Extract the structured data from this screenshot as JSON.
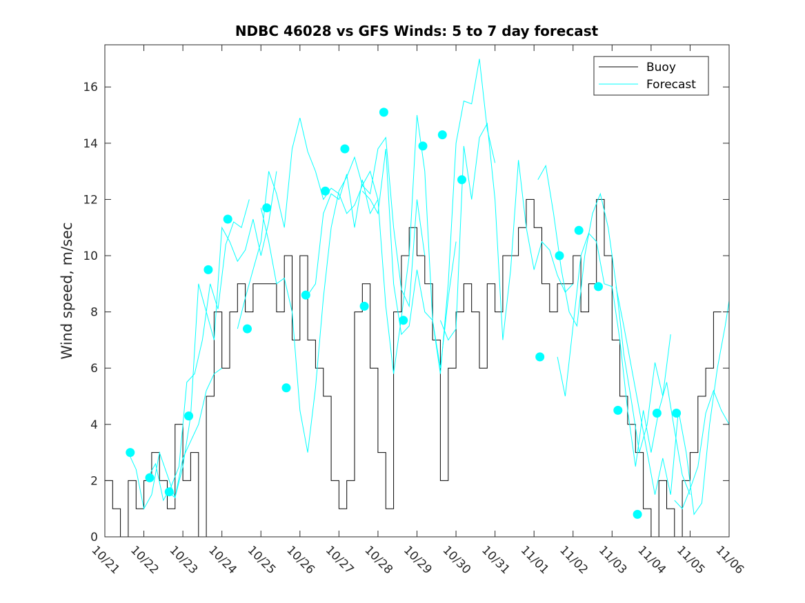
{
  "chart_data": {
    "type": "line",
    "title": "NDBC 46028 vs GFS Winds: 5 to 7 day forecast",
    "xlabel": "",
    "ylabel": "Wind speed, m/sec",
    "xlim": [
      0,
      16
    ],
    "ylim": [
      0,
      17.5
    ],
    "yticks": [
      0,
      2,
      4,
      6,
      8,
      10,
      12,
      14,
      16
    ],
    "xtick_labels": [
      "10/21",
      "10/22",
      "10/23",
      "10/24",
      "10/25",
      "10/26",
      "10/27",
      "10/28",
      "10/29",
      "10/30",
      "10/31",
      "11/01",
      "11/02",
      "11/03",
      "11/04",
      "11/05",
      "11/06"
    ],
    "legend": {
      "position": "top-right",
      "entries": [
        "Buoy",
        "Forecast"
      ]
    },
    "colors": {
      "buoy": "#000000",
      "forecast": "#00FFFF",
      "axis": "#262626"
    },
    "series": [
      {
        "name": "Buoy",
        "style": "step",
        "x": [
          0.0,
          0.2,
          0.4,
          0.6,
          0.8,
          1.0,
          1.2,
          1.4,
          1.6,
          1.8,
          2.0,
          2.2,
          2.4,
          2.6,
          2.8,
          3.0,
          3.2,
          3.4,
          3.6,
          3.8,
          4.0,
          4.2,
          4.4,
          4.6,
          4.8,
          5.0,
          5.2,
          5.4,
          5.6,
          5.8,
          6.0,
          6.2,
          6.4,
          6.6,
          6.8,
          7.0,
          7.2,
          7.4,
          7.6,
          7.8,
          8.0,
          8.2,
          8.4,
          8.6,
          8.8,
          9.0,
          9.2,
          9.4,
          9.6,
          9.8,
          10.0,
          10.2,
          10.4,
          10.6,
          10.8,
          11.0,
          11.2,
          11.4,
          11.6,
          11.8,
          12.0,
          12.2,
          12.4,
          12.6,
          12.8,
          13.0,
          13.2,
          13.4,
          13.6,
          13.8,
          14.0,
          14.2,
          14.4,
          14.6,
          14.8,
          15.0,
          15.2,
          15.4,
          15.6
        ],
        "values": [
          2,
          1,
          0,
          2,
          1,
          2,
          3,
          2,
          1,
          4,
          2,
          3,
          0,
          5,
          8,
          6,
          8,
          9,
          8,
          9,
          9,
          9,
          8,
          10,
          7,
          10,
          7,
          6,
          5,
          2,
          1,
          2,
          8,
          9,
          6,
          3,
          1,
          8,
          10,
          11,
          10,
          9,
          7,
          2,
          6,
          8,
          9,
          8,
          6,
          9,
          8,
          10,
          10,
          11,
          12,
          11,
          9,
          8,
          9,
          9,
          10,
          8,
          9,
          12,
          10,
          7,
          5,
          4,
          3,
          1,
          0,
          2,
          1,
          0,
          2,
          3,
          5,
          6,
          8
        ]
      },
      {
        "name": "Forecast",
        "style": "lines",
        "lines": [
          {
            "x": [
              0.6,
              0.8,
              1.0,
              1.2,
              1.4,
              1.6,
              1.8,
              2.0,
              2.2,
              2.4,
              2.6,
              2.8,
              3.0
            ],
            "values": [
              3.0,
              2.4,
              1.0,
              1.5,
              3.0,
              2.2,
              1.4,
              2.8,
              3.4,
              4.0,
              5.2,
              5.8,
              6.0
            ]
          },
          {
            "x": [
              1.1,
              1.3,
              1.5,
              1.7,
              1.9,
              2.1,
              2.3,
              2.5,
              2.7,
              2.9,
              3.1,
              3.3,
              3.5,
              3.7
            ],
            "values": [
              2.1,
              2.6,
              1.3,
              1.8,
              2.5,
              5.5,
              5.8,
              7.0,
              9.0,
              8.1,
              10.4,
              11.2,
              11.0,
              12.0
            ]
          },
          {
            "x": [
              1.6,
              1.8,
              2.0,
              2.2,
              2.4,
              2.6,
              2.8,
              3.0,
              3.2,
              3.4,
              3.6,
              3.8,
              4.0,
              4.2,
              4.4
            ],
            "values": [
              1.6,
              1.4,
              2.5,
              4.3,
              9.0,
              8.0,
              7.0,
              11.0,
              10.5,
              9.8,
              10.2,
              11.3,
              10.0,
              11.2,
              13.0
            ]
          },
          {
            "x": [
              3.4,
              3.6,
              3.8,
              4.0,
              4.2,
              4.4,
              4.6,
              4.8,
              5.0,
              5.2,
              5.4,
              5.6,
              5.8,
              6.0,
              6.2,
              6.4,
              6.6,
              6.8,
              7.0
            ],
            "values": [
              7.4,
              8.5,
              9.5,
              10.5,
              13.0,
              12.2,
              11.0,
              13.8,
              14.9,
              13.7,
              13.0,
              12.0,
              12.4,
              12.2,
              11.5,
              11.8,
              12.5,
              13.0,
              12.0
            ]
          },
          {
            "x": [
              4.0,
              4.2,
              4.4,
              4.6,
              4.8,
              5.0,
              5.2,
              5.4,
              5.6,
              5.8,
              6.0,
              6.2,
              6.4,
              6.6,
              6.8,
              7.0,
              7.2,
              7.4,
              7.6,
              7.8,
              8.0,
              8.2
            ],
            "values": [
              11.7,
              10.5,
              9.0,
              9.2,
              8.0,
              4.5,
              3.0,
              5.3,
              8.5,
              11.0,
              12.3,
              12.8,
              13.5,
              12.5,
              12.2,
              13.8,
              14.2,
              11.0,
              8.8,
              8.2,
              12.0,
              10.0
            ]
          },
          {
            "x": [
              5.2,
              5.4,
              5.6,
              5.8,
              6.0,
              6.2,
              6.4,
              6.6,
              6.8,
              7.0,
              7.2,
              7.4,
              7.6,
              7.8,
              8.0,
              8.2,
              8.4,
              8.6,
              8.8,
              9.0
            ],
            "values": [
              8.6,
              9.0,
              11.5,
              12.2,
              12.0,
              12.9,
              11.0,
              12.7,
              11.5,
              12.0,
              8.2,
              5.8,
              7.8,
              10.0,
              15.0,
              13.0,
              7.7,
              6.0,
              8.5,
              10.5
            ]
          },
          {
            "x": [
              6.6,
              6.8,
              7.0,
              7.2,
              7.4,
              7.6,
              7.8,
              8.0,
              8.2,
              8.4,
              8.6,
              8.8,
              9.0,
              9.2,
              9.4,
              9.6,
              9.8,
              10.0
            ],
            "values": [
              12.3,
              12.0,
              11.5,
              13.8,
              9.0,
              7.2,
              7.5,
              9.5,
              8.0,
              7.7,
              5.8,
              9.0,
              14.0,
              15.5,
              15.4,
              17.0,
              14.5,
              13.3
            ]
          },
          {
            "x": [
              8.6,
              8.8,
              9.0,
              9.2,
              9.4,
              9.6,
              9.8,
              10.0,
              10.2,
              10.4,
              10.6,
              10.8,
              11.0,
              11.2,
              11.4,
              11.6,
              11.8,
              12.0
            ],
            "values": [
              7.7,
              7.0,
              7.4,
              13.9,
              12.0,
              14.2,
              14.7,
              12.0,
              7.0,
              9.5,
              13.4,
              11.0,
              9.5,
              10.5,
              10.2,
              9.3,
              8.7,
              9.0
            ]
          },
          {
            "x": [
              11.1,
              11.3,
              11.5,
              11.7,
              11.9,
              12.1,
              12.3,
              12.5,
              12.7,
              12.9,
              13.1,
              13.3,
              13.5,
              13.7,
              13.9,
              14.1,
              14.3,
              14.5
            ],
            "values": [
              12.7,
              13.2,
              11.5,
              9.5,
              8.0,
              7.5,
              10.0,
              11.5,
              12.2,
              11.0,
              9.0,
              6.5,
              4.8,
              3.0,
              4.0,
              6.2,
              5.0,
              7.2
            ]
          },
          {
            "x": [
              11.6,
              11.8,
              12.0,
              12.2,
              12.4,
              12.6,
              12.8,
              13.0,
              13.2,
              13.4,
              13.6,
              13.8,
              14.0,
              14.2,
              14.4,
              14.6,
              14.8,
              15.0
            ],
            "values": [
              6.4,
              5.0,
              7.5,
              10.0,
              10.8,
              10.5,
              9.0,
              8.9,
              7.0,
              4.5,
              2.5,
              4.5,
              3.0,
              4.5,
              5.5,
              3.8,
              2.2,
              1.5
            ]
          },
          {
            "x": [
              13.1,
              13.3,
              13.5,
              13.7,
              13.9,
              14.1,
              14.3,
              14.5,
              14.7,
              14.9,
              15.1,
              15.3,
              15.5,
              15.7,
              15.9,
              16.0
            ],
            "values": [
              8.9,
              7.5,
              6.0,
              4.5,
              3.0,
              1.5,
              2.8,
              1.5,
              4.5,
              3.0,
              0.8,
              1.2,
              4.0,
              6.0,
              7.5,
              8.4
            ]
          },
          {
            "x": [
              14.6,
              14.8,
              15.0,
              15.2,
              15.4,
              15.6,
              15.8,
              16.0
            ],
            "values": [
              1.3,
              1.0,
              1.7,
              2.5,
              4.4,
              5.2,
              4.5,
              4.0
            ]
          }
        ]
      },
      {
        "name": "Forecast initial points",
        "style": "markers",
        "x": [
          0.65,
          1.15,
          1.65,
          2.15,
          2.65,
          3.15,
          3.65,
          4.15,
          4.65,
          5.15,
          5.65,
          6.15,
          6.65,
          7.15,
          7.65,
          8.15,
          8.65,
          9.15,
          11.15,
          11.65,
          12.15,
          12.65,
          13.15,
          13.65,
          14.15,
          14.65
        ],
        "values": [
          3.0,
          2.1,
          1.6,
          4.3,
          9.5,
          11.3,
          7.4,
          11.7,
          5.3,
          8.6,
          12.3,
          13.8,
          8.2,
          15.1,
          7.7,
          13.9,
          14.3,
          12.7,
          6.4,
          10.0,
          10.9,
          8.9,
          4.5,
          0.8,
          4.4,
          4.4
        ]
      }
    ]
  }
}
